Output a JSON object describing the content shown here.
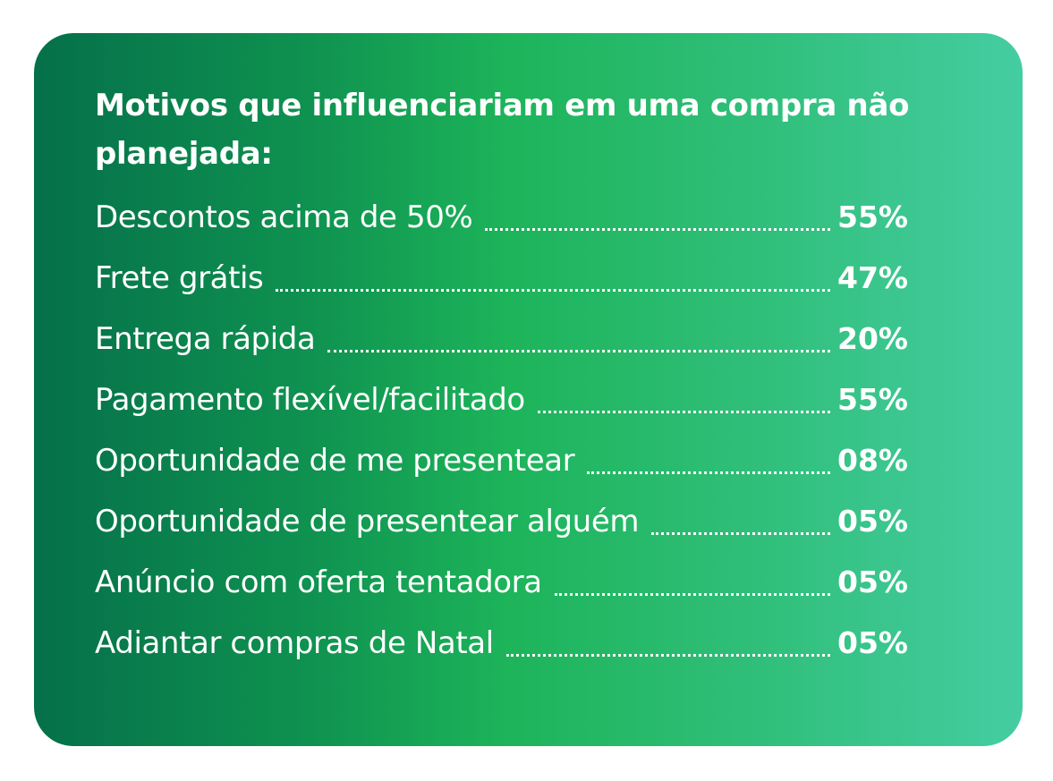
{
  "title": "Motivos que influenciariam em uma compra não planejada:",
  "colors": {
    "gradient_start": "#05704a",
    "gradient_mid": "#1db45a",
    "gradient_end": "#45cda2",
    "text": "#ffffff"
  },
  "items": [
    {
      "label": "Descontos acima de 50%",
      "value": "55%"
    },
    {
      "label": "Frete grátis",
      "value": "47%"
    },
    {
      "label": "Entrega rápida",
      "value": "20%"
    },
    {
      "label": "Pagamento flexível/facilitado",
      "value": "55%"
    },
    {
      "label": "Oportunidade de me presentear",
      "value": "08%"
    },
    {
      "label": "Oportunidade de presentear alguém",
      "value": "05%"
    },
    {
      "label": "Anúncio com oferta tentadora",
      "value": "05%"
    },
    {
      "label": "Adiantar compras de Natal",
      "value": "05%"
    }
  ]
}
